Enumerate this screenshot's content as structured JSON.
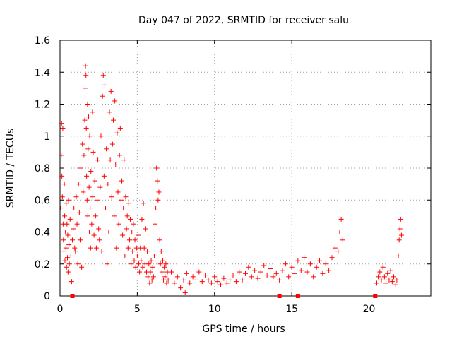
{
  "chart_data": {
    "type": "scatter",
    "title": "Day 047 of 2022, SRMTID for receiver salu",
    "xlabel": "GPS time / hours",
    "ylabel": "SRMTID / TECUs",
    "xlim": [
      0,
      24
    ],
    "ylim": [
      0,
      1.6
    ],
    "x_ticks": [
      0,
      5,
      10,
      15,
      20
    ],
    "y_ticks": [
      0,
      0.2,
      0.4,
      0.6,
      0.8,
      1,
      1.2,
      1.4,
      1.6
    ],
    "x_tick_labels": [
      "0",
      "5",
      "10",
      "15",
      "20"
    ],
    "y_tick_labels": [
      "0",
      "0.2",
      "0.4",
      "0.6",
      "0.8",
      "1",
      "1.2",
      "1.4",
      "1.6"
    ],
    "grid": true,
    "marker": "+",
    "color": "#ff0000",
    "series": [
      {
        "name": "SRMTID",
        "points": [
          [
            0.05,
            0.55
          ],
          [
            0.08,
            0.88
          ],
          [
            0.1,
            1.08
          ],
          [
            0.12,
            0.75
          ],
          [
            0.15,
            0.62
          ],
          [
            0.18,
            1.05
          ],
          [
            0.2,
            0.45
          ],
          [
            0.22,
            0.35
          ],
          [
            0.25,
            0.28
          ],
          [
            0.28,
            0.7
          ],
          [
            0.3,
            0.5
          ],
          [
            0.32,
            0.22
          ],
          [
            0.35,
            0.4
          ],
          [
            0.38,
            0.3
          ],
          [
            0.4,
            0.58
          ],
          [
            0.42,
            0.18
          ],
          [
            0.45,
            0.45
          ],
          [
            0.48,
            0.24
          ],
          [
            0.5,
            0.38
          ],
          [
            0.52,
            0.15
          ],
          [
            0.55,
            0.6
          ],
          [
            0.58,
            0.32
          ],
          [
            0.6,
            0.2
          ],
          [
            0.65,
            0.48
          ],
          [
            0.7,
            0.25
          ],
          [
            0.75,
            0.09
          ],
          [
            0.8,
            0.35
          ],
          [
            0.85,
            0.42
          ],
          [
            0.9,
            0.55
          ],
          [
            0.95,
            0.3
          ],
          [
            1.0,
            0.28
          ],
          [
            1.05,
            0.62
          ],
          [
            1.1,
            0.45
          ],
          [
            1.15,
            0.2
          ],
          [
            1.2,
            0.7
          ],
          [
            1.25,
            0.52
          ],
          [
            1.3,
            0.35
          ],
          [
            1.35,
            0.8
          ],
          [
            1.4,
            0.18
          ],
          [
            1.45,
            0.95
          ],
          [
            1.5,
            0.65
          ],
          [
            1.55,
            0.88
          ],
          [
            1.6,
            1.1
          ],
          [
            1.62,
            1.3
          ],
          [
            1.65,
            1.44
          ],
          [
            1.68,
            1.38
          ],
          [
            1.7,
            1.05
          ],
          [
            1.72,
            0.75
          ],
          [
            1.75,
            0.6
          ],
          [
            1.78,
            1.2
          ],
          [
            1.8,
            0.5
          ],
          [
            1.82,
            0.92
          ],
          [
            1.85,
            1.12
          ],
          [
            1.88,
            0.68
          ],
          [
            1.9,
            0.4
          ],
          [
            1.92,
            1.0
          ],
          [
            1.95,
            0.55
          ],
          [
            1.98,
            0.3
          ],
          [
            2.0,
            0.78
          ],
          [
            2.05,
            0.45
          ],
          [
            2.1,
            1.15
          ],
          [
            2.12,
            0.62
          ],
          [
            2.15,
            0.9
          ],
          [
            2.2,
            0.38
          ],
          [
            2.25,
            0.72
          ],
          [
            2.3,
            0.5
          ],
          [
            2.35,
            0.3
          ],
          [
            2.4,
            0.6
          ],
          [
            2.45,
            0.85
          ],
          [
            2.5,
            0.42
          ],
          [
            2.55,
            0.35
          ],
          [
            2.6,
            0.68
          ],
          [
            2.65,
            1.0
          ],
          [
            2.7,
            0.28
          ],
          [
            2.75,
            1.25
          ],
          [
            2.8,
            1.38
          ],
          [
            2.85,
            0.75
          ],
          [
            2.9,
            1.32
          ],
          [
            2.95,
            0.55
          ],
          [
            3.0,
            0.92
          ],
          [
            3.05,
            0.2
          ],
          [
            3.1,
            0.7
          ],
          [
            3.15,
            0.4
          ],
          [
            3.2,
            1.15
          ],
          [
            3.25,
            0.85
          ],
          [
            3.3,
            1.28
          ],
          [
            3.35,
            0.62
          ],
          [
            3.4,
            0.95
          ],
          [
            3.45,
            1.1
          ],
          [
            3.5,
            0.5
          ],
          [
            3.55,
            1.22
          ],
          [
            3.6,
            0.82
          ],
          [
            3.65,
            0.3
          ],
          [
            3.7,
            1.02
          ],
          [
            3.75,
            0.65
          ],
          [
            3.8,
            0.45
          ],
          [
            3.85,
            0.88
          ],
          [
            3.9,
            1.05
          ],
          [
            3.95,
            0.6
          ],
          [
            4.0,
            0.72
          ],
          [
            4.05,
            0.38
          ],
          [
            4.1,
            0.55
          ],
          [
            4.15,
            0.85
          ],
          [
            4.2,
            0.25
          ],
          [
            4.25,
            0.62
          ],
          [
            4.3,
            0.42
          ],
          [
            4.35,
            0.5
          ],
          [
            4.4,
            0.3
          ],
          [
            4.45,
            0.58
          ],
          [
            4.5,
            0.35
          ],
          [
            4.55,
            0.48
          ],
          [
            4.6,
            0.2
          ],
          [
            4.65,
            0.4
          ],
          [
            4.7,
            0.28
          ],
          [
            4.75,
            0.45
          ],
          [
            4.8,
            0.22
          ],
          [
            4.85,
            0.35
          ],
          [
            4.9,
            0.18
          ],
          [
            4.95,
            0.3
          ],
          [
            5.0,
            0.25
          ],
          [
            5.05,
            0.38
          ],
          [
            5.1,
            0.2
          ],
          [
            5.15,
            0.15
          ],
          [
            5.2,
            0.3
          ],
          [
            5.25,
            0.22
          ],
          [
            5.3,
            0.48
          ],
          [
            5.35,
            0.18
          ],
          [
            5.4,
            0.58
          ],
          [
            5.45,
            0.3
          ],
          [
            5.5,
            0.2
          ],
          [
            5.55,
            0.42
          ],
          [
            5.6,
            0.15
          ],
          [
            5.65,
            0.28
          ],
          [
            5.7,
            0.12
          ],
          [
            5.75,
            0.2
          ],
          [
            5.8,
            0.08
          ],
          [
            5.85,
            0.15
          ],
          [
            5.9,
            0.22
          ],
          [
            5.95,
            0.1
          ],
          [
            6.0,
            0.18
          ],
          [
            6.05,
            0.12
          ],
          [
            6.1,
            0.25
          ],
          [
            6.15,
            0.45
          ],
          [
            6.2,
            0.55
          ],
          [
            6.25,
            0.8
          ],
          [
            6.3,
            0.72
          ],
          [
            6.35,
            0.6
          ],
          [
            6.4,
            0.65
          ],
          [
            6.45,
            0.35
          ],
          [
            6.5,
            0.2
          ],
          [
            6.55,
            0.28
          ],
          [
            6.6,
            0.15
          ],
          [
            6.65,
            0.22
          ],
          [
            6.7,
            0.1
          ],
          [
            6.75,
            0.18
          ],
          [
            6.8,
            0.12
          ],
          [
            6.85,
            0.2
          ],
          [
            6.9,
            0.08
          ],
          [
            6.95,
            0.15
          ],
          [
            7.0,
            0.1
          ],
          [
            7.2,
            0.15
          ],
          [
            7.4,
            0.08
          ],
          [
            7.6,
            0.12
          ],
          [
            7.8,
            0.05
          ],
          [
            8.0,
            0.1
          ],
          [
            8.1,
            0.02
          ],
          [
            8.2,
            0.14
          ],
          [
            8.4,
            0.08
          ],
          [
            8.6,
            0.12
          ],
          [
            8.8,
            0.1
          ],
          [
            9.0,
            0.15
          ],
          [
            9.2,
            0.09
          ],
          [
            9.4,
            0.13
          ],
          [
            9.6,
            0.1
          ],
          [
            9.8,
            0.08
          ],
          [
            10.0,
            0.12
          ],
          [
            10.2,
            0.09
          ],
          [
            10.4,
            0.07
          ],
          [
            10.6,
            0.11
          ],
          [
            10.8,
            0.08
          ],
          [
            11.0,
            0.1
          ],
          [
            11.2,
            0.13
          ],
          [
            11.4,
            0.09
          ],
          [
            11.6,
            0.15
          ],
          [
            11.8,
            0.1
          ],
          [
            12.0,
            0.14
          ],
          [
            12.2,
            0.18
          ],
          [
            12.4,
            0.12
          ],
          [
            12.6,
            0.16
          ],
          [
            12.8,
            0.11
          ],
          [
            13.0,
            0.15
          ],
          [
            13.2,
            0.19
          ],
          [
            13.4,
            0.13
          ],
          [
            13.6,
            0.17
          ],
          [
            13.8,
            0.12
          ],
          [
            14.0,
            0.14
          ],
          [
            14.2,
            0.1
          ],
          [
            14.4,
            0.16
          ],
          [
            14.6,
            0.2
          ],
          [
            14.8,
            0.12
          ],
          [
            15.0,
            0.18
          ],
          [
            15.2,
            0.14
          ],
          [
            15.4,
            0.22
          ],
          [
            15.6,
            0.16
          ],
          [
            15.8,
            0.24
          ],
          [
            16.0,
            0.15
          ],
          [
            16.2,
            0.2
          ],
          [
            16.4,
            0.12
          ],
          [
            16.6,
            0.18
          ],
          [
            16.8,
            0.22
          ],
          [
            17.0,
            0.14
          ],
          [
            17.2,
            0.2
          ],
          [
            17.4,
            0.16
          ],
          [
            17.6,
            0.24
          ],
          [
            17.8,
            0.3
          ],
          [
            18.0,
            0.28
          ],
          [
            18.1,
            0.4
          ],
          [
            18.2,
            0.48
          ],
          [
            18.3,
            0.35
          ],
          [
            20.5,
            0.08
          ],
          [
            20.6,
            0.12
          ],
          [
            20.7,
            0.15
          ],
          [
            20.8,
            0.1
          ],
          [
            20.9,
            0.18
          ],
          [
            21.0,
            0.12
          ],
          [
            21.1,
            0.08
          ],
          [
            21.2,
            0.14
          ],
          [
            21.3,
            0.1
          ],
          [
            21.4,
            0.16
          ],
          [
            21.5,
            0.09
          ],
          [
            21.6,
            0.12
          ],
          [
            21.7,
            0.07
          ],
          [
            21.8,
            0.1
          ],
          [
            21.9,
            0.25
          ],
          [
            21.95,
            0.35
          ],
          [
            22.0,
            0.42
          ],
          [
            22.05,
            0.48
          ],
          [
            22.1,
            0.38
          ]
        ]
      }
    ],
    "baseline_markers_x": [
      0.8,
      14.2,
      15.4,
      20.4
    ]
  }
}
